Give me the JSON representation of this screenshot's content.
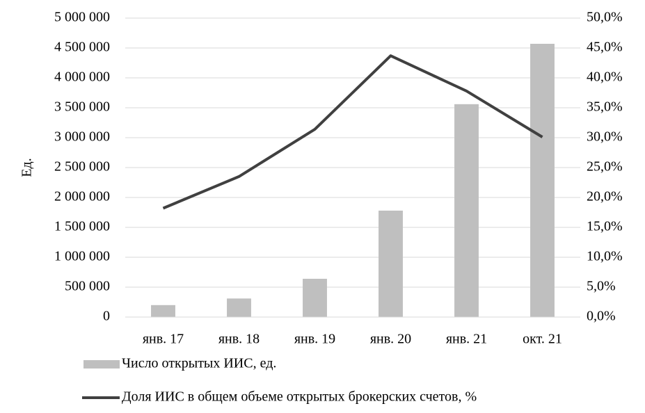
{
  "chart_data": {
    "type": "bar",
    "ylabel": "Ед.",
    "categories": [
      "янв. 17",
      "янв. 18",
      "янв. 19",
      "янв. 20",
      "янв. 21",
      "окт. 21"
    ],
    "series": [
      {
        "name": "Число открытых ИИС, ед.",
        "type": "bar",
        "color": "#bfbfbf",
        "values": [
          200000,
          310000,
          640000,
          1780000,
          3560000,
          4570000
        ]
      },
      {
        "name": "Доля ИИС в общем объеме открытых брокерских счетов, %",
        "type": "line",
        "color": "#404040",
        "axis": "y2",
        "values": [
          18.2,
          23.5,
          31.4,
          43.7,
          37.8,
          30.1
        ]
      }
    ],
    "ylim": [
      0,
      5000000
    ],
    "yticks": [
      {
        "value": 0,
        "label": "0"
      },
      {
        "value": 500000,
        "label": "500 000"
      },
      {
        "value": 1000000,
        "label": "1 000 000"
      },
      {
        "value": 1500000,
        "label": "1 500 000"
      },
      {
        "value": 2000000,
        "label": "2 000 000"
      },
      {
        "value": 2500000,
        "label": "2 500 000"
      },
      {
        "value": 3000000,
        "label": "3 000 000"
      },
      {
        "value": 3500000,
        "label": "3 500 000"
      },
      {
        "value": 4000000,
        "label": "4 000 000"
      },
      {
        "value": 4500000,
        "label": "4 500 000"
      },
      {
        "value": 5000000,
        "label": "5 000 000"
      }
    ],
    "y2lim": [
      0,
      50
    ],
    "y2ticks": [
      {
        "value": 0,
        "label": "0,0%"
      },
      {
        "value": 5,
        "label": "5,0%"
      },
      {
        "value": 10,
        "label": "10,0%"
      },
      {
        "value": 15,
        "label": "15,0%"
      },
      {
        "value": 20,
        "label": "20,0%"
      },
      {
        "value": 25,
        "label": "25,0%"
      },
      {
        "value": 30,
        "label": "30,0%"
      },
      {
        "value": 35,
        "label": "35,0%"
      },
      {
        "value": 40,
        "label": "40,0%"
      },
      {
        "value": 45,
        "label": "45,0%"
      },
      {
        "value": 50,
        "label": "50,0%"
      }
    ],
    "grid": true
  }
}
